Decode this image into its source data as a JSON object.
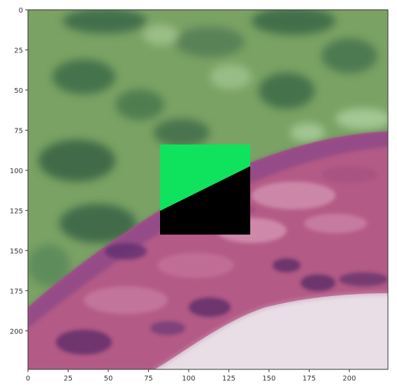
{
  "image": {
    "description_colors": {
      "overlay_green": "#0fe35e",
      "mask_black": "#000000",
      "tissue_pink": "#b04f7a",
      "nuclei_purple": "#5a2d6b",
      "background_pale": "#e8dde6",
      "green_tint_region": "#6f9a5e"
    }
  },
  "axes": {
    "x_ticks": [
      "0",
      "25",
      "50",
      "75",
      "100",
      "125",
      "150",
      "175",
      "200"
    ],
    "y_ticks": [
      "0",
      "25",
      "50",
      "75",
      "100",
      "125",
      "150",
      "175",
      "200"
    ],
    "x_tick_values": [
      0,
      25,
      50,
      75,
      100,
      125,
      150,
      175,
      200
    ],
    "y_tick_values": [
      0,
      25,
      50,
      75,
      100,
      125,
      150,
      175,
      200
    ],
    "xlim": [
      0,
      224
    ],
    "ylim": [
      224,
      0
    ]
  },
  "patch": {
    "x_range": [
      82,
      138
    ],
    "y_range": [
      84,
      140
    ]
  }
}
